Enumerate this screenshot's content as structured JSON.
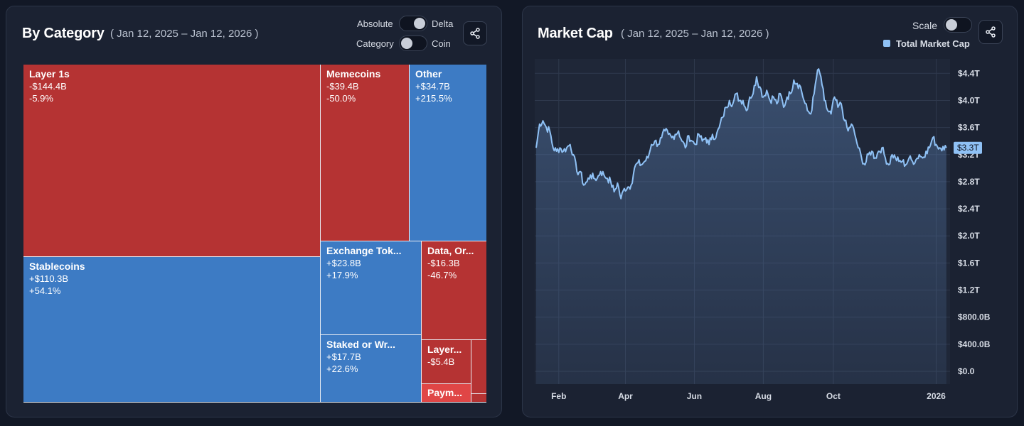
{
  "treemap_panel": {
    "title": "By Category",
    "date_range": "( Jan 12, 2025 – Jan 12, 2026 )",
    "toggle1": {
      "left_label": "Absolute",
      "right_label": "Delta"
    },
    "toggle2": {
      "left_label": "Category",
      "right_label": "Coin"
    },
    "colors": {
      "negative": "#b53333",
      "positive": "#3d7bc4",
      "negative_bright": "#e04646"
    }
  },
  "market_cap_panel": {
    "title": "Market Cap",
    "date_range": "( Jan 12, 2025 – Jan 12, 2026 )",
    "scale_label": "Scale",
    "line_color": "#8fc1f5"
  },
  "chart_data": [
    {
      "type": "treemap",
      "title": "By Category",
      "items": [
        {
          "name": "Layer 1s",
          "delta": "-$144.4B",
          "pct": "-5.9%"
        },
        {
          "name": "Stablecoins",
          "delta": "+$110.3B",
          "pct": "+54.1%"
        },
        {
          "name": "Memecoins",
          "delta": "-$39.4B",
          "pct": "-50.0%"
        },
        {
          "name": "Other",
          "delta": "+$34.7B",
          "pct": "+215.5%"
        },
        {
          "name": "Exchange Tok...",
          "delta": "+$23.8B",
          "pct": "+17.9%"
        },
        {
          "name": "Data, Or...",
          "delta": "-$16.3B",
          "pct": "-46.7%"
        },
        {
          "name": "Staked or Wr...",
          "delta": "+$17.7B",
          "pct": "+22.6%"
        },
        {
          "name": "Layer...",
          "delta": "-$5.4B",
          "pct": ""
        },
        {
          "name": "Paym...",
          "delta": "",
          "pct": ""
        }
      ]
    },
    {
      "type": "line",
      "title": "Market Cap",
      "legend": [
        "Total Market Cap"
      ],
      "y_ticks": [
        "$0.0",
        "$400.0B",
        "$800.0B",
        "$1.2T",
        "$1.6T",
        "$2.0T",
        "$2.4T",
        "$2.8T",
        "$3.2T",
        "$3.6T",
        "$4.0T",
        "$4.4T"
      ],
      "y_tick_values": [
        0,
        0.4,
        0.8,
        1.2,
        1.6,
        2.0,
        2.4,
        2.8,
        3.2,
        3.6,
        4.0,
        4.4
      ],
      "x_ticks": [
        "Feb",
        "Apr",
        "Jun",
        "Aug",
        "Oct",
        "2026"
      ],
      "x_tick_days": [
        20,
        79,
        140,
        201,
        263,
        354
      ],
      "ylim": [
        0,
        4.55
      ],
      "xlim": [
        0,
        365
      ],
      "current_value_label": "$3.3T",
      "current_value": 3.3,
      "series": [
        {
          "name": "Total Market Cap",
          "unit": "T",
          "days": [
            0,
            3,
            6,
            9,
            12,
            15,
            18,
            21,
            24,
            27,
            30,
            33,
            36,
            39,
            42,
            45,
            48,
            51,
            54,
            57,
            60,
            63,
            66,
            69,
            72,
            75,
            78,
            81,
            84,
            87,
            90,
            93,
            96,
            99,
            102,
            105,
            108,
            111,
            114,
            117,
            120,
            123,
            126,
            129,
            132,
            135,
            138,
            141,
            144,
            147,
            150,
            153,
            156,
            159,
            162,
            165,
            168,
            171,
            174,
            177,
            180,
            183,
            186,
            189,
            192,
            195,
            198,
            201,
            204,
            207,
            210,
            213,
            216,
            219,
            222,
            225,
            228,
            231,
            234,
            237,
            240,
            243,
            246,
            249,
            252,
            255,
            258,
            261,
            264,
            267,
            270,
            273,
            276,
            279,
            282,
            285,
            288,
            291,
            294,
            297,
            300,
            303,
            306,
            309,
            312,
            315,
            318,
            321,
            324,
            327,
            330,
            333,
            336,
            339,
            342,
            345,
            348,
            351,
            354,
            357,
            360,
            363
          ],
          "values": [
            3.3,
            3.65,
            3.7,
            3.6,
            3.55,
            3.3,
            3.25,
            3.3,
            3.25,
            3.3,
            3.35,
            3.2,
            2.95,
            2.95,
            2.75,
            2.8,
            2.9,
            2.85,
            2.85,
            2.95,
            2.9,
            2.85,
            2.8,
            2.65,
            2.78,
            2.55,
            2.7,
            2.72,
            2.75,
            3.0,
            3.08,
            3.05,
            3.1,
            3.15,
            3.35,
            3.4,
            3.35,
            3.45,
            3.55,
            3.5,
            3.45,
            3.5,
            3.55,
            3.4,
            3.3,
            3.48,
            3.4,
            3.35,
            3.5,
            3.4,
            3.45,
            3.35,
            3.5,
            3.45,
            3.6,
            3.75,
            3.9,
            4.0,
            3.95,
            4.1,
            4.0,
            4.0,
            3.85,
            4.05,
            4.1,
            4.35,
            4.2,
            4.05,
            4.15,
            4.0,
            4.05,
            3.95,
            4.1,
            3.9,
            4.05,
            4.1,
            4.3,
            4.25,
            4.2,
            4.0,
            3.85,
            3.8,
            4.1,
            4.45,
            4.35,
            4.0,
            3.85,
            3.8,
            4.05,
            3.9,
            3.95,
            3.7,
            3.55,
            3.65,
            3.5,
            3.3,
            3.15,
            3.05,
            3.2,
            3.25,
            3.15,
            3.25,
            3.3,
            3.15,
            3.05,
            3.2,
            3.15,
            3.1,
            3.1,
            3.05,
            3.15,
            3.1,
            3.12,
            3.2,
            3.15,
            3.25,
            3.3,
            3.45,
            3.35,
            3.3,
            3.32,
            3.3
          ]
        }
      ]
    }
  ]
}
